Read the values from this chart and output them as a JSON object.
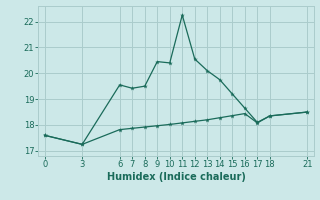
{
  "xlabel": "Humidex (Indice chaleur)",
  "bg_color": "#cce8e8",
  "grid_color": "#aacccc",
  "line_color": "#1a6b5a",
  "xlim": [
    -0.5,
    21.5
  ],
  "ylim": [
    16.8,
    22.6
  ],
  "xticks": [
    0,
    3,
    6,
    7,
    8,
    9,
    10,
    11,
    12,
    13,
    14,
    15,
    16,
    17,
    18,
    21
  ],
  "yticks": [
    17,
    18,
    19,
    20,
    21,
    22
  ],
  "line1_x": [
    0,
    3,
    6,
    7,
    8,
    9,
    10,
    11,
    12,
    13,
    14,
    15,
    16,
    17,
    18,
    21
  ],
  "line1_y": [
    17.6,
    17.25,
    19.55,
    19.42,
    19.5,
    20.45,
    20.4,
    22.25,
    20.55,
    20.1,
    19.75,
    19.2,
    18.65,
    18.1,
    18.35,
    18.5
  ],
  "line2_x": [
    0,
    3,
    6,
    7,
    8,
    9,
    10,
    11,
    12,
    13,
    14,
    15,
    16,
    17,
    18,
    21
  ],
  "line2_y": [
    17.6,
    17.25,
    17.82,
    17.87,
    17.92,
    17.97,
    18.02,
    18.08,
    18.14,
    18.2,
    18.28,
    18.36,
    18.44,
    18.08,
    18.35,
    18.5
  ],
  "tick_fontsize": 6,
  "xlabel_fontsize": 7
}
